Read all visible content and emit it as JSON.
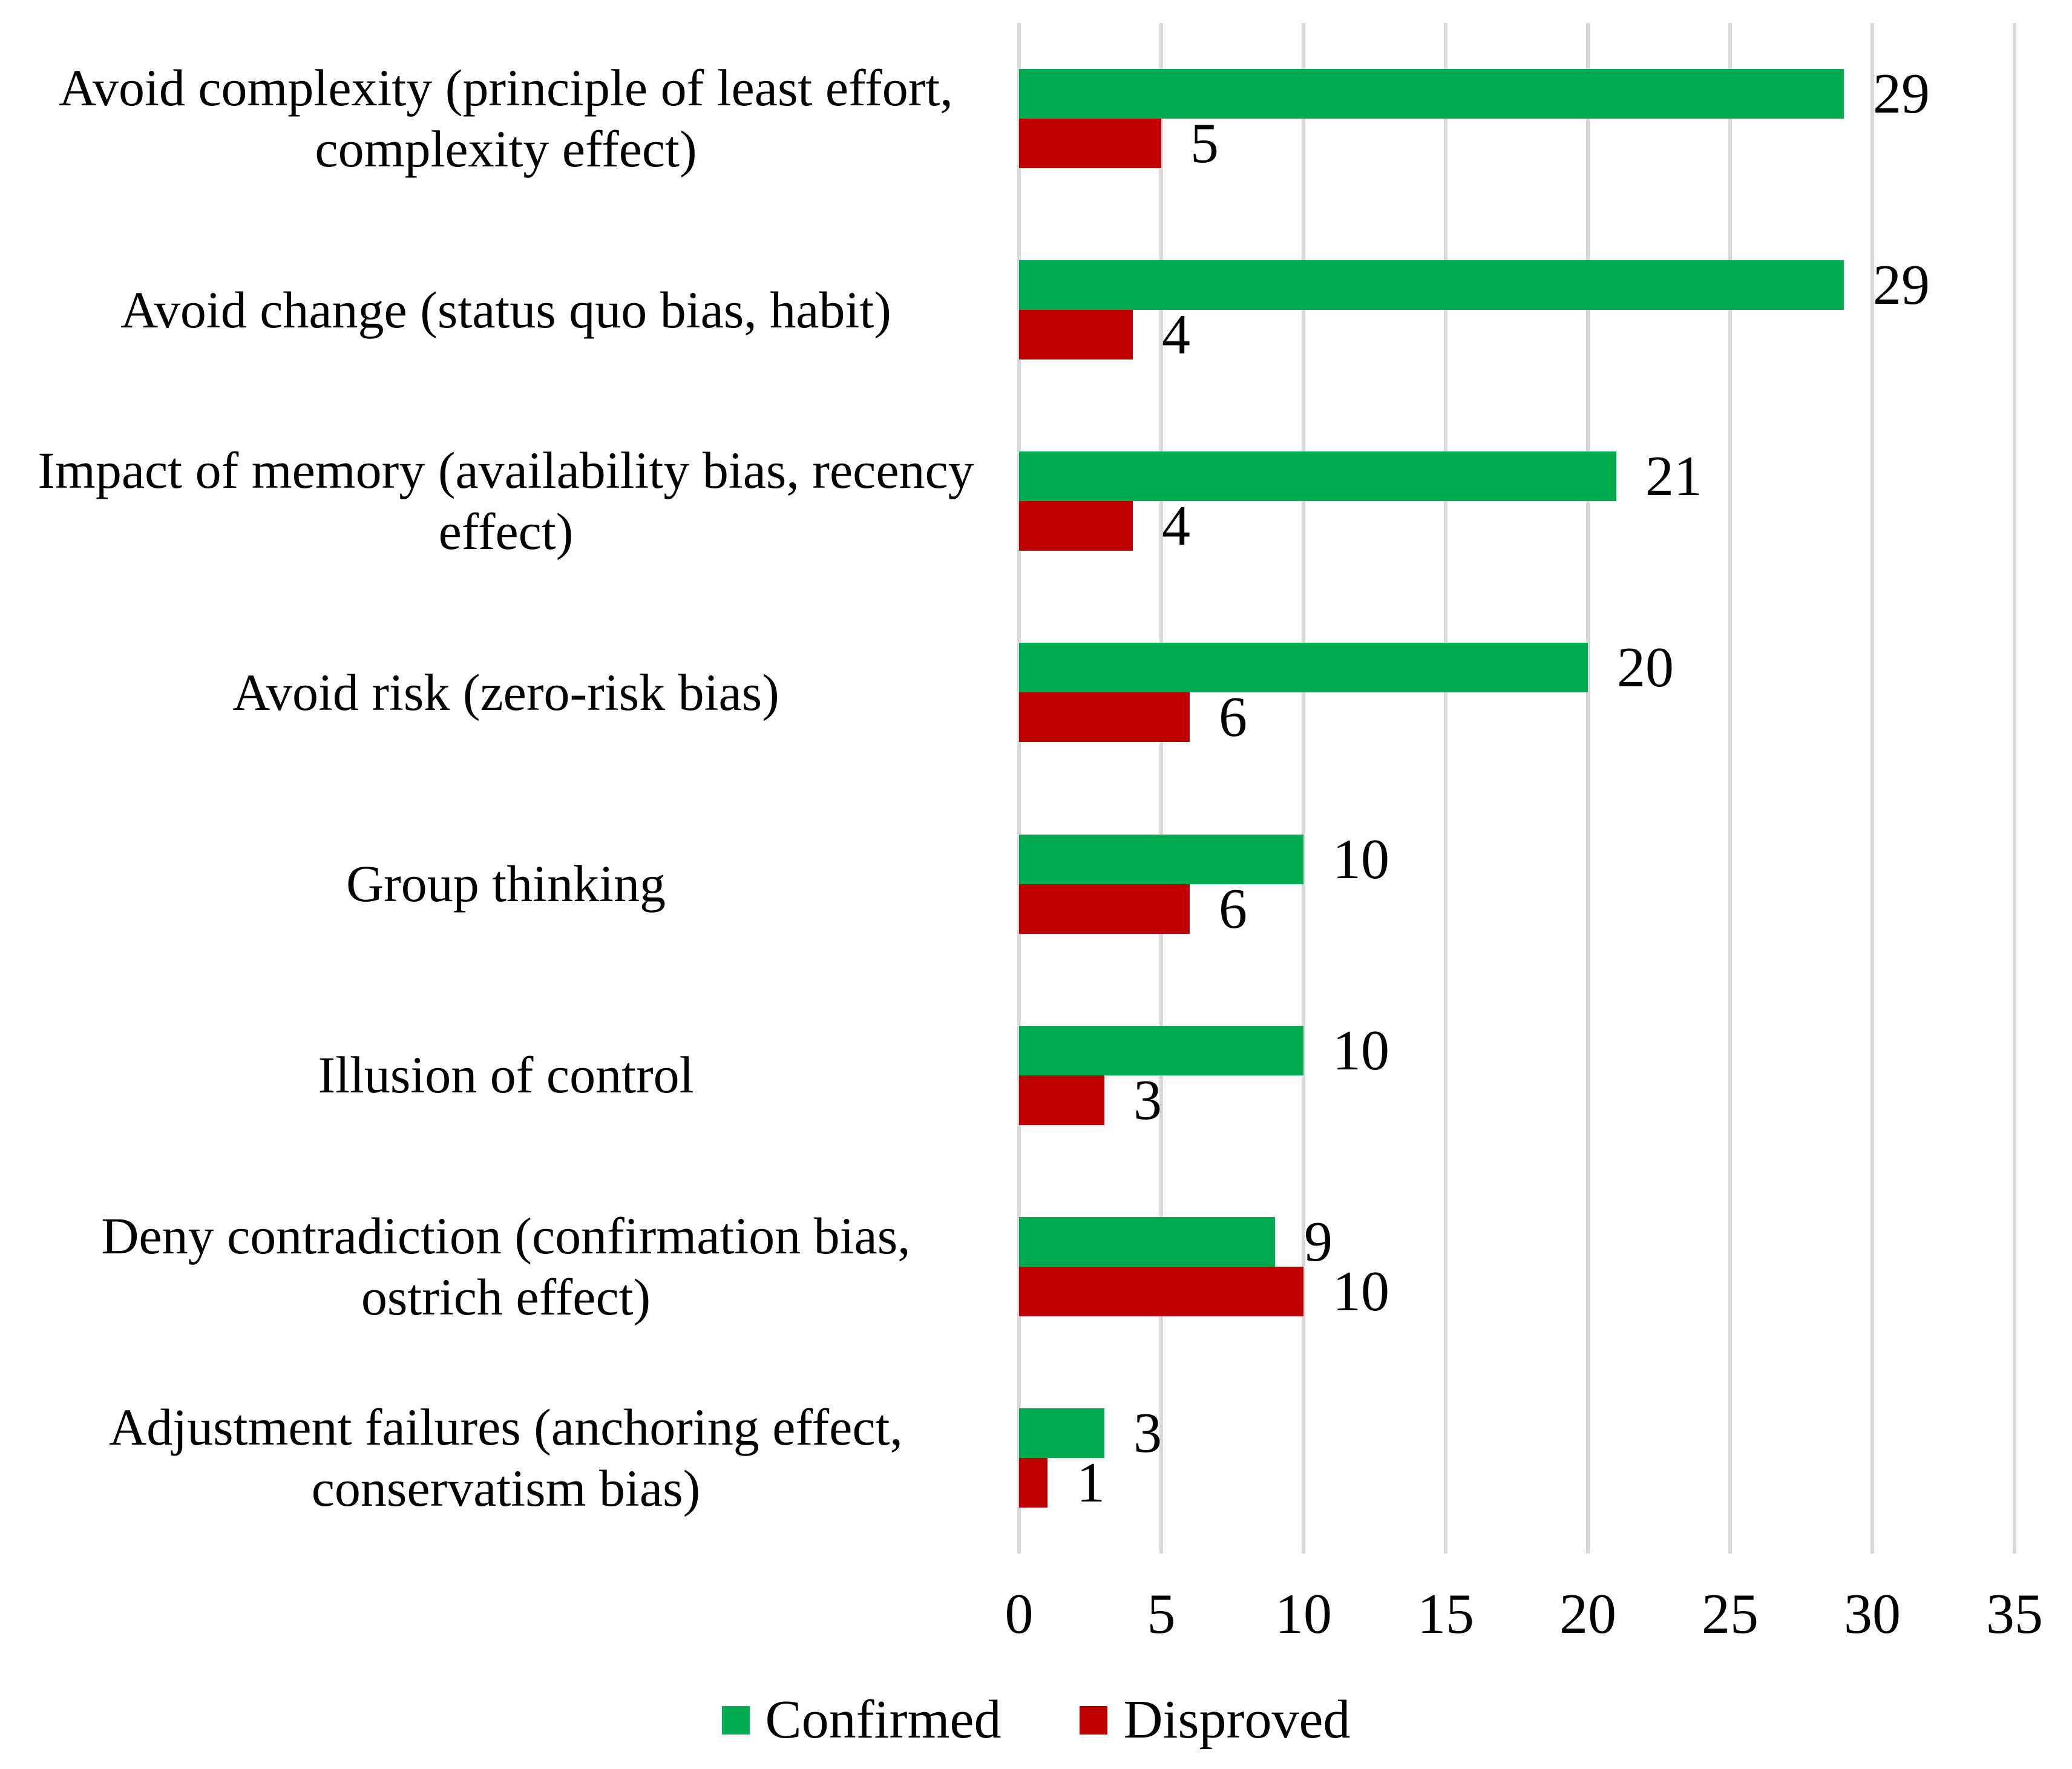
{
  "chart_data": {
    "type": "bar",
    "orientation": "horizontal",
    "title": "",
    "xlabel": "",
    "ylabel": "",
    "xlim": [
      0,
      35
    ],
    "x_ticks": [
      0,
      5,
      10,
      15,
      20,
      25,
      30,
      35
    ],
    "grid": "vertical",
    "gridline_color": "#D9D9D9",
    "data_labels": true,
    "legend_position": "bottom",
    "categories": [
      "Avoid complexity (principle of least effort, complexity effect)",
      "Avoid change (status quo bias, habit)",
      "Impact of memory (availability bias, recency effect)",
      "Avoid risk (zero-risk bias)",
      "Group thinking",
      "Illusion of control",
      "Deny contradiction (confirmation bias, ostrich effect)",
      "Adjustment failures (anchoring effect, conservatism bias)"
    ],
    "category_display_lines": [
      [
        "Avoid complexity (principle of least effort,",
        "complexity effect)"
      ],
      [
        "Avoid change (status quo bias, habit)"
      ],
      [
        "Impact of memory (availability bias, recency",
        "effect)"
      ],
      [
        "Avoid risk (zero-risk bias)"
      ],
      [
        "Group thinking"
      ],
      [
        "Illusion of control"
      ],
      [
        "Deny contradiction (confirmation bias,",
        "ostrich effect)"
      ],
      [
        "Adjustment failures (anchoring effect,",
        "conservatism bias)"
      ]
    ],
    "series": [
      {
        "name": "Confirmed",
        "color": "#00AC4F",
        "values": [
          29,
          29,
          21,
          20,
          10,
          10,
          9,
          3
        ]
      },
      {
        "name": "Disproved",
        "color": "#C00000",
        "values": [
          5,
          4,
          4,
          6,
          6,
          3,
          10,
          1
        ]
      }
    ]
  },
  "legend": {
    "confirmed_label": "Confirmed",
    "disproved_label": "Disproved",
    "confirmed_color": "#00AC4F",
    "disproved_color": "#C00000"
  }
}
